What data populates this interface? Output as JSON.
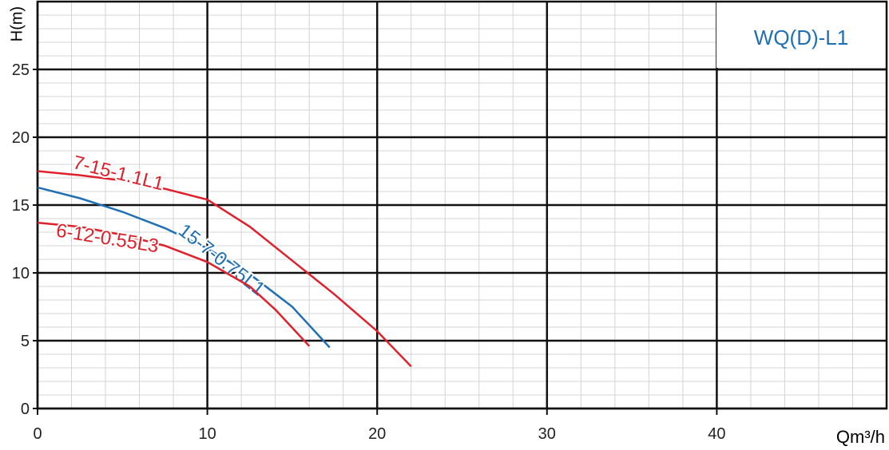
{
  "chart_data": {
    "type": "line",
    "title": "WQ(D)-L1",
    "title_color": "#1f6fb4",
    "x_label": "Qm³/h",
    "y_label": "H(m)",
    "xlim": [
      0,
      50
    ],
    "ylim": [
      0,
      30
    ],
    "xticks": [
      0,
      10,
      20,
      30,
      40
    ],
    "yticks": [
      0,
      5,
      10,
      15,
      20,
      25
    ],
    "grid": true,
    "minor_grid": true,
    "series": [
      {
        "name": "7-15-1.1L1",
        "color": "#e0202a",
        "x": [
          0,
          2.5,
          5,
          7.5,
          10,
          12.5,
          15,
          17.5,
          20,
          22
        ],
        "values": [
          17.5,
          17.2,
          16.8,
          16.2,
          15.4,
          13.4,
          10.9,
          8.4,
          5.7,
          3.1
        ]
      },
      {
        "name": "15-7-0.75L1",
        "color": "#1f6fb4",
        "x": [
          0,
          2.5,
          5,
          7.5,
          10,
          12.5,
          15,
          17.2
        ],
        "values": [
          16.3,
          15.5,
          14.5,
          13.3,
          11.8,
          9.9,
          7.5,
          4.5
        ]
      },
      {
        "name": "6-12-0.55L3",
        "color": "#e0202a",
        "x": [
          0,
          2.5,
          5,
          7.5,
          10,
          12.5,
          14,
          16
        ],
        "values": [
          13.7,
          13.4,
          12.8,
          12.0,
          10.8,
          9.0,
          7.3,
          4.6
        ]
      }
    ]
  }
}
